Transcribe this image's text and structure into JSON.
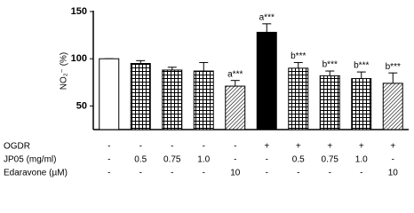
{
  "chart_data": {
    "type": "bar",
    "y_label": "NO₂⁻ (%)",
    "values": [
      100,
      95,
      88,
      87,
      71,
      128,
      90,
      82,
      79,
      74
    ],
    "errors": [
      0,
      3,
      3,
      9,
      6,
      9,
      6,
      5,
      7,
      11
    ],
    "patterns": [
      "open",
      "grid",
      "grid",
      "grid",
      "diagonal",
      "solid",
      "grid",
      "grid",
      "grid",
      "diagonal"
    ],
    "annotations": [
      null,
      null,
      null,
      null,
      "a***",
      "a***",
      "b***",
      "b***",
      "b***",
      "b***"
    ],
    "ylim": [
      25,
      150
    ],
    "yticks": [
      50,
      100,
      150
    ],
    "table": [
      {
        "label": "OGDR",
        "cells": [
          "-",
          "-",
          "-",
          "-",
          "-",
          "+",
          "+",
          "+",
          "+",
          "+"
        ]
      },
      {
        "label": "JP05 (mg/ml)",
        "cells": [
          "-",
          "0.5",
          "0.75",
          "1.0",
          "-",
          "-",
          "0.5",
          "0.75",
          "1.0",
          "-"
        ]
      },
      {
        "label": "Edaravone (µM)",
        "cells": [
          "-",
          "-",
          "-",
          "-",
          "10",
          "-",
          "-",
          "-",
          "-",
          "10"
        ]
      }
    ]
  }
}
